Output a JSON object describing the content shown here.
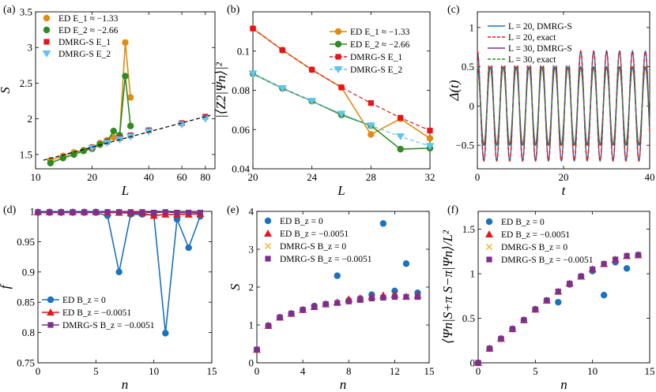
{
  "colors": {
    "ed1": "#E08A12",
    "ed2": "#2E8B22",
    "dmrg1": "#E8141B",
    "dmrg2": "#62C3EE",
    "edb0": "#1B72BE",
    "edbm": "#E8141B",
    "dmrgb0": "#EDB120",
    "dmrgbm": "#7E2F8E",
    "black": "#000000"
  },
  "chart_data": [
    {
      "id": "a",
      "panel_label": "(a)",
      "type": "scatter",
      "xscale": "log",
      "xlabel": "L",
      "ylabel": "S",
      "xlim": [
        10,
        90
      ],
      "ylim": [
        1.3,
        3.5
      ],
      "xticks": [
        10,
        20,
        40,
        60,
        80
      ],
      "yticks": [
        1.5,
        2,
        2.5,
        3,
        3.5
      ],
      "legend": [
        "ED E_1 ≈ −1.33",
        "ED E_2 ≈ −2.66",
        "DMRG-S E_1",
        "DMRG-S E_2"
      ],
      "series": [
        {
          "name": "ED E1",
          "marker": "circle",
          "color": "ed1",
          "line": true,
          "x": [
            12,
            14,
            16,
            18,
            20,
            22,
            24,
            26,
            28,
            30,
            32
          ],
          "y": [
            1.42,
            1.48,
            1.53,
            1.56,
            1.6,
            1.66,
            1.7,
            1.74,
            1.76,
            3.07,
            2.3
          ]
        },
        {
          "name": "ED E2",
          "marker": "circle",
          "color": "ed2",
          "line": true,
          "x": [
            12,
            14,
            16,
            18,
            20,
            22,
            24,
            26,
            28,
            30,
            32
          ],
          "y": [
            1.38,
            1.45,
            1.5,
            1.55,
            1.58,
            1.64,
            1.68,
            1.83,
            1.77,
            2.6,
            1.9
          ]
        },
        {
          "name": "DMRG-S E1",
          "marker": "square",
          "color": "dmrg1",
          "x": [
            20,
            24,
            28,
            32,
            40,
            60,
            80
          ],
          "y": [
            1.6,
            1.68,
            1.73,
            1.77,
            1.84,
            1.94,
            2.03
          ]
        },
        {
          "name": "DMRG-S E2",
          "marker": "triangle-down",
          "color": "dmrg2",
          "x": [
            20,
            24,
            28,
            32,
            40,
            60,
            80
          ],
          "y": [
            1.59,
            1.66,
            1.71,
            1.75,
            1.82,
            1.92,
            2.0
          ]
        },
        {
          "name": "fit",
          "dashed": true,
          "color": "black",
          "x": [
            11,
            85
          ],
          "y": [
            1.42,
            2.05
          ]
        }
      ]
    },
    {
      "id": "b",
      "panel_label": "(b)",
      "type": "line",
      "xlabel": "L",
      "ylabel": "|⟨Z2|Ψn⟩|²",
      "xlim": [
        20,
        32
      ],
      "ylim": [
        0.04,
        0.12
      ],
      "xticks": [
        20,
        24,
        28,
        32
      ],
      "yticks": [
        0.04,
        0.06,
        0.08,
        0.1
      ],
      "legend": [
        "ED E_1 ≈ −1.33",
        "ED E_2 ≈ −2.66",
        "DMRG-S E_1",
        "DMRG-S E_2"
      ],
      "series": [
        {
          "name": "ED E1",
          "marker": "circle",
          "color": "ed1",
          "x": [
            20,
            22,
            24,
            26,
            28,
            30,
            32
          ],
          "y": [
            0.1115,
            0.1005,
            0.0905,
            0.0815,
            0.0575,
            0.0655,
            0.0555
          ]
        },
        {
          "name": "ED E2",
          "marker": "circle",
          "color": "ed2",
          "x": [
            20,
            22,
            24,
            26,
            28,
            30,
            32
          ],
          "y": [
            0.0885,
            0.081,
            0.0745,
            0.0675,
            0.062,
            0.05,
            0.0505
          ]
        },
        {
          "name": "DMRG-S E1",
          "marker": "square",
          "color": "dmrg1",
          "dashed": true,
          "x": [
            20,
            22,
            24,
            26,
            28,
            30,
            32
          ],
          "y": [
            0.1115,
            0.1005,
            0.0905,
            0.0815,
            0.0735,
            0.066,
            0.0595
          ]
        },
        {
          "name": "DMRG-S E2",
          "marker": "triangle-down",
          "color": "dmrg2",
          "dashed": true,
          "x": [
            20,
            22,
            24,
            26,
            28,
            30,
            32
          ],
          "y": [
            0.0885,
            0.081,
            0.0745,
            0.068,
            0.062,
            0.0565,
            0.0515
          ]
        }
      ]
    },
    {
      "id": "c",
      "panel_label": "(c)",
      "type": "line",
      "xlabel": "t",
      "ylabel": "Δ(t)",
      "xlim": [
        0,
        40
      ],
      "ylim": [
        -0.8,
        1.2
      ],
      "xticks": [
        0,
        20,
        40
      ],
      "yticks": [
        -0.5,
        0,
        0.5,
        1
      ],
      "legend": [
        "L = 20, DMRG-S",
        "L = 20, exact",
        "L = 30, DMRG-S",
        "L = 30, exact"
      ],
      "oscillation": {
        "period": 3.0,
        "amplitude_L20": 0.7,
        "amplitude_L30": 0.5,
        "decay_L20": 0.0,
        "decay_L30": 0.0
      },
      "series": [
        {
          "name": "L = 20, DMRG-S",
          "color": "edb0"
        },
        {
          "name": "L = 20, exact",
          "color": "dmrg1",
          "dashed": true
        },
        {
          "name": "L = 30, DMRG-S",
          "color": "dmrgbm"
        },
        {
          "name": "L = 30, exact",
          "color": "ed2",
          "dashed": true
        }
      ]
    },
    {
      "id": "d",
      "panel_label": "(d)",
      "type": "line",
      "xlabel": "n",
      "ylabel": "f",
      "xlim": [
        0,
        15
      ],
      "ylim": [
        0.75,
        1.0
      ],
      "xticks": [
        0,
        5,
        10,
        15
      ],
      "yticks": [
        0.75,
        0.8,
        0.85,
        0.9,
        0.95,
        1
      ],
      "legend": [
        "ED B_z = 0",
        "ED B_z = −0.0051",
        "DMRG-S B_z = −0.0051"
      ],
      "series": [
        {
          "name": "ED Bz=0",
          "marker": "circle",
          "color": "edb0",
          "x": [
            0,
            1,
            2,
            3,
            4,
            5,
            6,
            7,
            8,
            9,
            10,
            11,
            12,
            13,
            14
          ],
          "y": [
            0.998,
            0.998,
            0.998,
            0.998,
            0.998,
            0.998,
            0.993,
            0.9,
            0.995,
            0.995,
            0.994,
            0.799,
            0.987,
            0.94,
            0.992
          ]
        },
        {
          "name": "ED Bz=-0.0051",
          "marker": "triangle-up",
          "color": "edbm",
          "x": [
            0,
            1,
            2,
            3,
            4,
            5,
            6,
            7,
            8,
            9,
            10,
            11,
            12,
            13,
            14
          ],
          "y": [
            0.999,
            0.999,
            0.999,
            0.999,
            0.999,
            0.999,
            0.998,
            0.998,
            0.997,
            0.997,
            0.993,
            0.995,
            0.995,
            0.995,
            0.996
          ]
        },
        {
          "name": "DMRG-S Bz=-0.0051",
          "marker": "square",
          "color": "dmrgbm",
          "x": [
            0,
            1,
            2,
            3,
            4,
            5,
            6,
            7,
            8,
            9,
            10,
            11,
            12,
            13,
            14
          ],
          "y": [
            0.999,
            0.999,
            0.999,
            0.999,
            0.999,
            0.999,
            0.999,
            0.999,
            0.999,
            0.999,
            0.998,
            0.999,
            0.998,
            0.998,
            0.998
          ]
        }
      ]
    },
    {
      "id": "e",
      "panel_label": "(e)",
      "type": "scatter",
      "xlabel": "n",
      "ylabel": "S",
      "xlim": [
        0,
        15
      ],
      "ylim": [
        0,
        4
      ],
      "xticks": [
        0,
        4,
        8,
        12,
        15
      ],
      "yticks": [
        0,
        1,
        2,
        3,
        4
      ],
      "legend": [
        "ED B_z = 0",
        "ED B_z = −0.0051",
        "DMRG-S B_z = 0",
        "DMRG-S B_z = −0.0051"
      ],
      "series": [
        {
          "name": "ED Bz=0",
          "marker": "circle",
          "color": "edb0",
          "x": [
            0,
            1,
            2,
            3,
            4,
            5,
            6,
            7,
            8,
            9,
            10,
            11,
            12,
            13,
            14
          ],
          "y": [
            0.35,
            0.98,
            1.2,
            1.3,
            1.4,
            1.5,
            1.55,
            2.3,
            1.65,
            1.7,
            1.8,
            3.68,
            1.9,
            2.62,
            1.85
          ]
        },
        {
          "name": "ED Bz=-0.0051",
          "marker": "triangle-up",
          "color": "edbm",
          "x": [
            0,
            1,
            2,
            3,
            4,
            5,
            6,
            7,
            8,
            9,
            10,
            11,
            12,
            13,
            14
          ],
          "y": [
            0.35,
            0.98,
            1.2,
            1.3,
            1.4,
            1.48,
            1.55,
            1.6,
            1.68,
            1.7,
            1.75,
            1.78,
            1.8,
            1.75,
            1.78
          ]
        },
        {
          "name": "DMRG-S Bz=0",
          "marker": "x",
          "color": "dmrgb0",
          "x": [
            0,
            1,
            2,
            3,
            4,
            5,
            6,
            7,
            8,
            9,
            10,
            11,
            12,
            13,
            14
          ],
          "y": [
            0.35,
            0.98,
            1.2,
            1.3,
            1.4,
            1.48,
            1.55,
            1.58,
            1.62,
            1.66,
            1.7,
            1.72,
            1.74,
            1.74,
            1.74
          ]
        },
        {
          "name": "DMRG-S Bz=-0.0051",
          "marker": "square",
          "color": "dmrgbm",
          "x": [
            0,
            1,
            2,
            3,
            4,
            5,
            6,
            7,
            8,
            9,
            10,
            11,
            12,
            13,
            14
          ],
          "y": [
            0.35,
            0.98,
            1.2,
            1.3,
            1.4,
            1.48,
            1.55,
            1.58,
            1.62,
            1.66,
            1.7,
            1.72,
            1.74,
            1.74,
            1.74
          ]
        }
      ]
    },
    {
      "id": "f",
      "panel_label": "(f)",
      "type": "scatter",
      "xlabel": "n",
      "ylabel": "⟨Ψn|S+π S−π|Ψn⟩/L²",
      "xlim": [
        0,
        15
      ],
      "ylim": [
        0,
        1.7
      ],
      "xticks": [
        0,
        5,
        10,
        15
      ],
      "yticks": [
        0,
        0.5,
        1,
        1.5
      ],
      "legend": [
        "ED B_z = 0",
        "ED B_z = −0.0051",
        "DMRG-S B_z = 0",
        "DMRG-S B_z = −0.0051"
      ],
      "series": [
        {
          "name": "ED Bz=0",
          "marker": "circle",
          "color": "edb0",
          "x": [
            0,
            1,
            2,
            3,
            4,
            5,
            6,
            7,
            8,
            9,
            10,
            11,
            12,
            13,
            14
          ],
          "y": [
            0.0,
            0.16,
            0.27,
            0.38,
            0.48,
            0.6,
            0.7,
            0.68,
            0.88,
            0.97,
            1.03,
            0.76,
            1.13,
            1.06,
            1.21
          ]
        },
        {
          "name": "ED Bz=-0.0051",
          "marker": "triangle-up",
          "color": "edbm",
          "x": [
            0,
            1,
            2,
            3,
            4,
            5,
            6,
            7,
            8,
            9,
            10,
            11,
            12,
            13,
            14
          ],
          "y": [
            0.0,
            0.16,
            0.27,
            0.38,
            0.48,
            0.6,
            0.7,
            0.8,
            0.89,
            0.97,
            1.05,
            1.11,
            1.16,
            1.2,
            1.21
          ]
        },
        {
          "name": "DMRG-S Bz=0",
          "marker": "x",
          "color": "dmrgb0",
          "x": [
            0,
            1,
            2,
            3,
            4,
            5,
            6,
            7,
            8,
            9,
            10,
            11,
            12,
            13,
            14
          ],
          "y": [
            0.0,
            0.16,
            0.27,
            0.38,
            0.48,
            0.6,
            0.7,
            0.8,
            0.89,
            0.97,
            1.05,
            1.11,
            1.16,
            1.2,
            1.21
          ]
        },
        {
          "name": "DMRG-S Bz=-0.0051",
          "marker": "square",
          "color": "dmrgbm",
          "x": [
            0,
            1,
            2,
            3,
            4,
            5,
            6,
            7,
            8,
            9,
            10,
            11,
            12,
            13,
            14
          ],
          "y": [
            0.0,
            0.16,
            0.27,
            0.38,
            0.48,
            0.6,
            0.7,
            0.8,
            0.89,
            0.97,
            1.05,
            1.11,
            1.16,
            1.2,
            1.21
          ]
        }
      ]
    }
  ]
}
